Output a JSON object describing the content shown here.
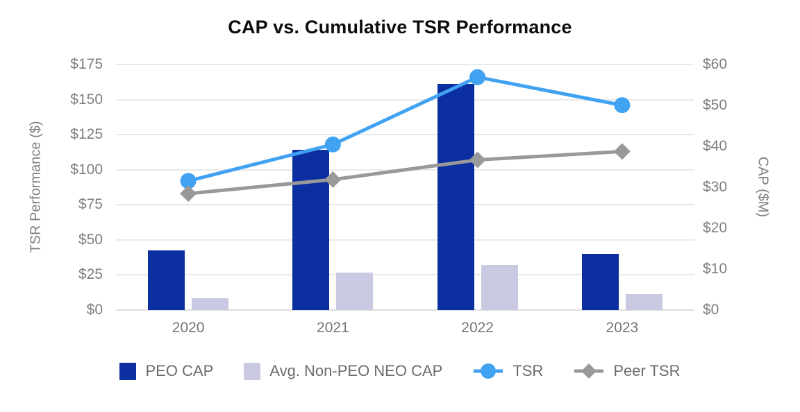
{
  "title": "CAP vs. Cumulative TSR Performance",
  "left_axis": {
    "label": "TSR Performance ($)",
    "ticks": [
      "$175",
      "$150",
      "$125",
      "$100",
      "$75",
      "$50",
      "$25",
      "$0"
    ]
  },
  "right_axis": {
    "label": "CAP ($M)",
    "ticks": [
      "$60",
      "$50",
      "$40",
      "$30",
      "$20",
      "$10",
      "$0"
    ]
  },
  "colors": {
    "peo_cap": "#0b2fa0",
    "avg_non_peo_cap": "#c9c9e2",
    "tsr": "#41a2f2",
    "peer_tsr": "#999999",
    "gridline": "#e9e9e9",
    "axis_text": "#7e7e7e",
    "legend_text": "#6b6b6b",
    "title_text": "#0d0d0d"
  },
  "chart_data": {
    "type": "bar",
    "subtype": "combo-bar-line-dual-axis",
    "title": "CAP vs. Cumulative TSR Performance",
    "categories": [
      "2020",
      "2021",
      "2022",
      "2023"
    ],
    "series": [
      {
        "name": "PEO CAP",
        "type": "bar",
        "axis": "right",
        "marker": "square",
        "color": "#0b2fa0",
        "values": [
          14.6,
          39.2,
          55.2,
          13.7
        ]
      },
      {
        "name": "Avg. Non-PEO NEO CAP",
        "type": "bar",
        "axis": "right",
        "marker": "square",
        "color": "#c9c9e2",
        "values": [
          2.8,
          9.1,
          11.1,
          3.9
        ]
      },
      {
        "name": "TSR",
        "type": "line",
        "axis": "left",
        "marker": "circle",
        "color": "#41a2f2",
        "values": [
          92,
          118,
          166,
          146
        ]
      },
      {
        "name": "Peer TSR",
        "type": "line",
        "axis": "left",
        "marker": "diamond",
        "color": "#999999",
        "values": [
          83,
          93,
          107,
          113
        ]
      }
    ],
    "left_ylabel": "TSR Performance ($)",
    "right_ylabel": "CAP ($M)",
    "left_ylim": [
      0,
      175
    ],
    "right_ylim": [
      0,
      60
    ],
    "left_tick_step": 25,
    "right_tick_step": 10,
    "grid": true,
    "legend_position": "bottom"
  }
}
